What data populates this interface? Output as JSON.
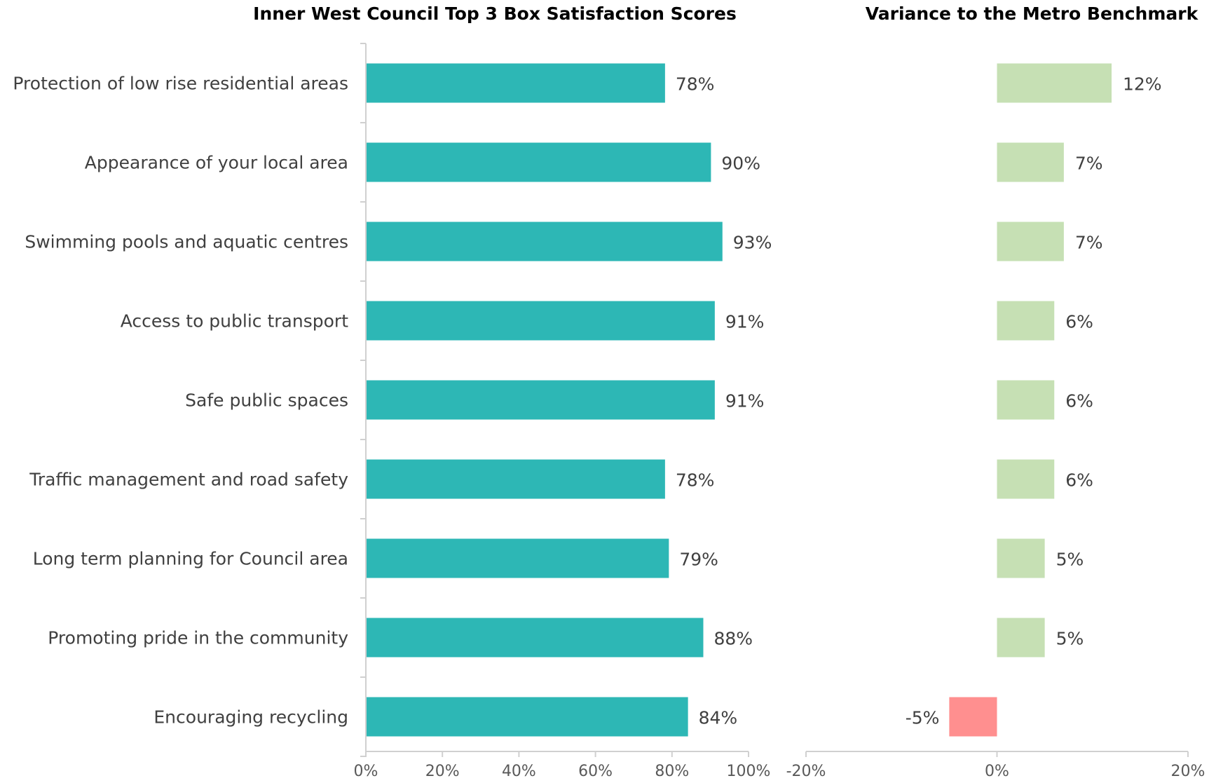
{
  "colors": {
    "satisfaction_bar": "#2db7b5",
    "variance_positive": "#c6e0b4",
    "variance_negative": "#ff8f8f",
    "axis": "#d0d0d0",
    "text": "#404040"
  },
  "chart_data": [
    {
      "type": "bar",
      "orientation": "horizontal",
      "title": "Inner West Council Top 3 Box Satisfaction Scores",
      "xlabel": "",
      "ylabel": "",
      "xlim": [
        0,
        100
      ],
      "ticks": [
        0,
        20,
        40,
        60,
        80,
        100
      ],
      "tick_labels": [
        "0%",
        "20%",
        "40%",
        "60%",
        "80%",
        "100%"
      ],
      "categories": [
        "Protection of low rise residential areas",
        "Appearance of your local area",
        "Swimming pools and aquatic centres",
        "Access to public transport",
        "Safe public spaces",
        "Traffic management and road safety",
        "Long term planning for Council area",
        "Promoting pride in the community",
        "Encouraging recycling"
      ],
      "values": [
        78,
        90,
        93,
        91,
        91,
        78,
        79,
        88,
        84
      ],
      "data_labels": [
        "78%",
        "90%",
        "93%",
        "91%",
        "91%",
        "78%",
        "79%",
        "88%",
        "84%"
      ],
      "grid": false,
      "legend": "none"
    },
    {
      "type": "bar",
      "orientation": "horizontal",
      "title": "Variance to the Metro Benchmark",
      "xlabel": "",
      "ylabel": "",
      "xlim": [
        -20,
        20
      ],
      "ticks": [
        -20,
        0,
        20
      ],
      "tick_labels": [
        "-20%",
        "0%",
        "20%"
      ],
      "categories": [
        "Protection of low rise residential areas",
        "Appearance of your local area",
        "Swimming pools and aquatic centres",
        "Access to public transport",
        "Safe public spaces",
        "Traffic management and road safety",
        "Long term planning for Council area",
        "Promoting pride in the community",
        "Encouraging recycling"
      ],
      "values": [
        12,
        7,
        7,
        6,
        6,
        6,
        5,
        5,
        -5
      ],
      "data_labels": [
        "12%",
        "7%",
        "7%",
        "6%",
        "6%",
        "6%",
        "5%",
        "5%",
        "-5%"
      ],
      "grid": false,
      "legend": "none"
    }
  ]
}
